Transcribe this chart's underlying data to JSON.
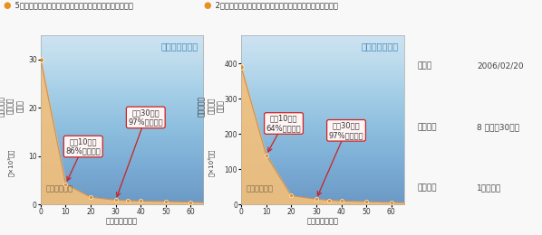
{
  "chart1": {
    "title_bullet": "●",
    "title_text": " 5ミクロンの粒子（花粉・ハウスダストなど）捕集グラフ",
    "x": [
      0,
      10,
      20,
      30,
      35,
      40,
      50,
      60,
      65
    ],
    "y": [
      30,
      4.2,
      1.5,
      0.9,
      0.8,
      0.7,
      0.6,
      0.5,
      0.4
    ],
    "ylim": [
      0,
      35
    ],
    "yticks": [
      0,
      10,
      20,
      30
    ],
    "xticks": [
      0,
      10,
      20,
      30,
      40,
      50,
      60
    ],
    "ann1_pct": "86%",
    "ann1_txt": "カット！",
    "ann1_head": "開始10分で",
    "ann1_x": 10,
    "ann1_y": 4.2,
    "ann1_bx": 17,
    "ann1_by": 12,
    "ann2_pct": "97%",
    "ann2_txt": "カット！",
    "ann2_head": "開始30分で",
    "ann2_x": 30,
    "ann2_y": 0.9,
    "ann2_bx": 42,
    "ann2_by": 18,
    "clean_air": "クリーンな空気",
    "dirty_air": "よごれた空気",
    "xlabel": "使用時間（分）",
    "ylabel1": "室内の１㎥",
    "ylabel2": "あたりの",
    "ylabel3": "粒子数",
    "yunits": "（×10³個）"
  },
  "chart2": {
    "title_bullet": "●",
    "title_text": " 2ミクロンの粒子（カビ胞子・タバコの煙など）捕集グラフ",
    "x": [
      0,
      10,
      20,
      30,
      35,
      40,
      50,
      60,
      65
    ],
    "y": [
      390,
      140,
      25,
      15,
      12,
      10,
      8,
      6,
      5
    ],
    "ylim": [
      0,
      480
    ],
    "yticks": [
      0,
      100,
      200,
      300,
      400
    ],
    "xticks": [
      0,
      10,
      20,
      30,
      40,
      50,
      60
    ],
    "ann1_pct": "64%",
    "ann1_txt": "カット！",
    "ann1_head": "開始10分で",
    "ann1_x": 10,
    "ann1_y": 140,
    "ann1_bx": 17,
    "ann1_by": 230,
    "ann2_pct": "97%",
    "ann2_txt": "カット！",
    "ann2_head": "開始30分で",
    "ann2_x": 30,
    "ann2_y": 15,
    "ann2_bx": 42,
    "ann2_by": 210,
    "clean_air": "クリーンな空気",
    "dirty_air": "よごれた空気",
    "xlabel": "使用時間（分）",
    "ylabel1": "室内の１㎥",
    "ylabel2": "あたりの",
    "ylabel3": "粒子数",
    "yunits": "（×10³個）"
  },
  "footer": [
    [
      "測定日",
      "2006/02/20"
    ],
    [
      "測定空間",
      "8 界間（30㎥）"
    ],
    [
      "測定単位",
      "1㎥あたり"
    ]
  ],
  "fill_color": "#f5c07a",
  "line_color": "#c8905a",
  "dot_color": "#e89020",
  "box_bg": "#fff5f5",
  "box_edge": "#cc2222",
  "pct_color": "#cc2222",
  "arrow_color": "#cc2222",
  "clean_color": "#4488bb",
  "dirty_color": "#776644",
  "title_color": "#333333",
  "outer_bg": "#f8f8f8",
  "chart_bg_top": "#c8e8f8",
  "chart_bg_bot": "#e8f4fc"
}
